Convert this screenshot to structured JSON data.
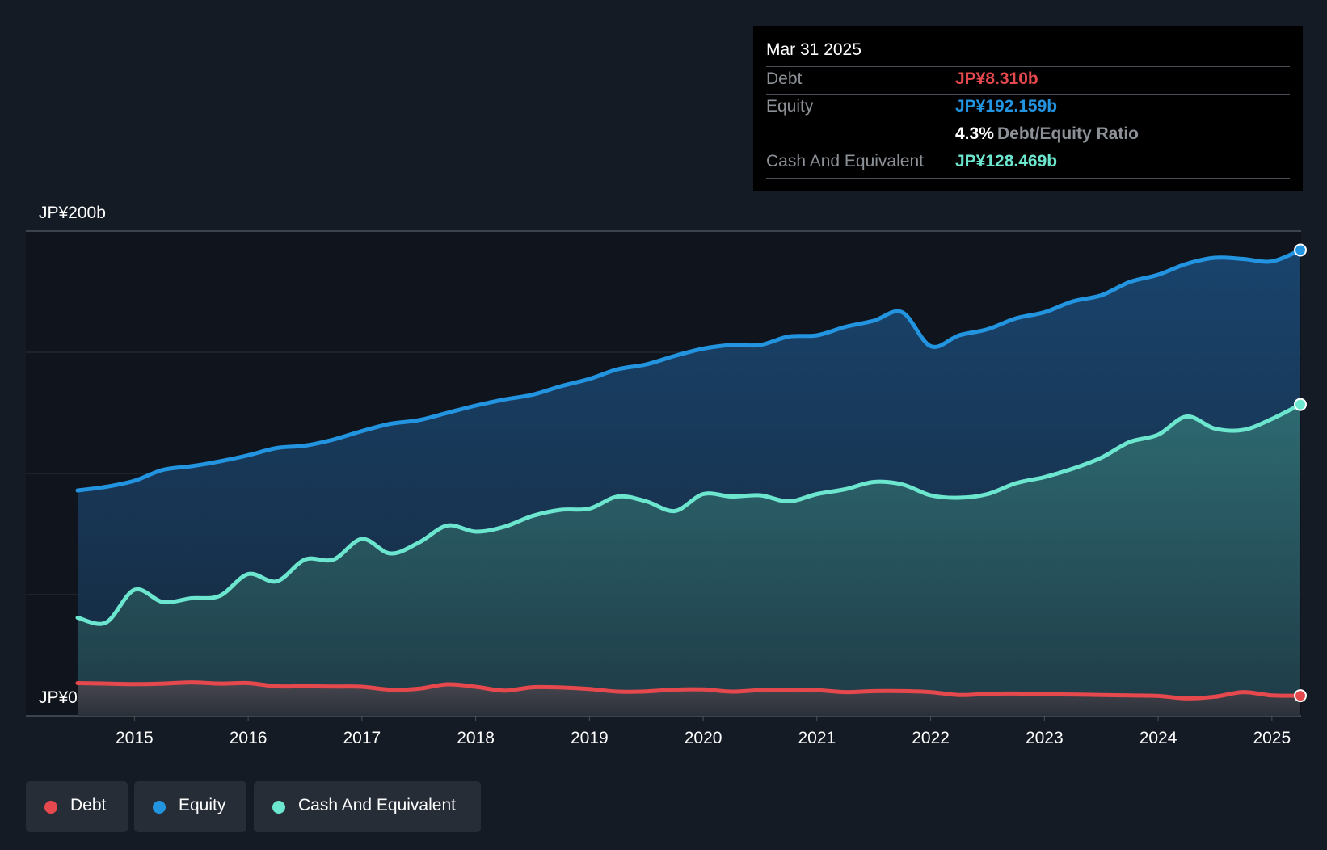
{
  "tooltip": {
    "date": "Mar 31 2025",
    "debt_label": "Debt",
    "debt_value": "JP¥8.310b",
    "equity_label": "Equity",
    "equity_value": "JP¥192.159b",
    "ratio_value": "4.3%",
    "ratio_label": "Debt/Equity Ratio",
    "cash_label": "Cash And Equivalent",
    "cash_value": "JP¥128.469b"
  },
  "legend": {
    "debt": "Debt",
    "equity": "Equity",
    "cash": "Cash And Equivalent"
  },
  "colors": {
    "debt": "#e5484d",
    "equity": "#2394e0",
    "cash": "#6ce6cf",
    "background": "#151b24"
  },
  "chart_data": {
    "type": "area",
    "title": "",
    "y_axis_labels": [
      "JP¥200b",
      "JP¥0"
    ],
    "ylim": [
      0,
      200
    ],
    "xlim": [
      2014.5,
      2025.25
    ],
    "x_ticks": [
      "2015",
      "2016",
      "2017",
      "2018",
      "2019",
      "2020",
      "2021",
      "2022",
      "2023",
      "2024",
      "2025"
    ],
    "unit": "JP¥b",
    "series": [
      {
        "name": "Equity",
        "x": [
          2014.5,
          2014.75,
          2015.0,
          2015.25,
          2015.5,
          2015.75,
          2016.0,
          2016.25,
          2016.5,
          2016.75,
          2017.0,
          2017.25,
          2017.5,
          2017.75,
          2018.0,
          2018.25,
          2018.5,
          2018.75,
          2019.0,
          2019.25,
          2019.5,
          2019.75,
          2020.0,
          2020.25,
          2020.5,
          2020.75,
          2021.0,
          2021.25,
          2021.5,
          2021.75,
          2022.0,
          2022.25,
          2022.5,
          2022.75,
          2023.0,
          2023.25,
          2023.5,
          2023.75,
          2024.0,
          2024.25,
          2024.5,
          2024.75,
          2025.0,
          2025.25
        ],
        "values": [
          93,
          94.5,
          97,
          101.5,
          103,
          105,
          107.5,
          110.5,
          111.5,
          114,
          117.5,
          120.5,
          122,
          125,
          128,
          130.5,
          132.5,
          136,
          139,
          143,
          145,
          148.5,
          151.5,
          153,
          153,
          156.5,
          157,
          160.5,
          163,
          166.5,
          152.5,
          157,
          159.5,
          164,
          166.5,
          171,
          173.5,
          179,
          182,
          186.5,
          189,
          188.5,
          187.5,
          192.159
        ]
      },
      {
        "name": "Cash And Equivalent",
        "x": [
          2014.5,
          2014.75,
          2015.0,
          2015.25,
          2015.5,
          2015.75,
          2016.0,
          2016.25,
          2016.5,
          2016.75,
          2017.0,
          2017.25,
          2017.5,
          2017.75,
          2018.0,
          2018.25,
          2018.5,
          2018.75,
          2019.0,
          2019.25,
          2019.5,
          2019.75,
          2020.0,
          2020.25,
          2020.5,
          2020.75,
          2021.0,
          2021.25,
          2021.5,
          2021.75,
          2022.0,
          2022.25,
          2022.5,
          2022.75,
          2023.0,
          2023.25,
          2023.5,
          2023.75,
          2024.0,
          2024.25,
          2024.5,
          2024.75,
          2025.0,
          2025.25
        ],
        "values": [
          40.5,
          38.5,
          52,
          47,
          48.5,
          49.5,
          58.5,
          55.5,
          64.5,
          64.5,
          73,
          67,
          71.5,
          78.5,
          76,
          78,
          82.5,
          85,
          85.5,
          90.5,
          88.5,
          84.5,
          91.5,
          90.5,
          91,
          88.5,
          91.5,
          93.5,
          96.5,
          95.5,
          91,
          90,
          91.5,
          96,
          98.5,
          102,
          106.5,
          113,
          116,
          123.5,
          118.5,
          118,
          122.5,
          128.469
        ]
      },
      {
        "name": "Debt",
        "x": [
          2014.5,
          2014.75,
          2015.0,
          2015.25,
          2015.5,
          2015.75,
          2016.0,
          2016.25,
          2016.5,
          2016.75,
          2017.0,
          2017.25,
          2017.5,
          2017.75,
          2018.0,
          2018.25,
          2018.5,
          2018.75,
          2019.0,
          2019.25,
          2019.5,
          2019.75,
          2020.0,
          2020.25,
          2020.5,
          2020.75,
          2021.0,
          2021.25,
          2021.5,
          2021.75,
          2022.0,
          2022.25,
          2022.5,
          2022.75,
          2023.0,
          2023.25,
          2023.5,
          2023.75,
          2024.0,
          2024.25,
          2024.5,
          2024.75,
          2025.0,
          2025.25
        ],
        "values": [
          13.5,
          13.3,
          13.1,
          13.3,
          13.8,
          13.3,
          13.5,
          12.2,
          12.2,
          12.1,
          12.0,
          10.8,
          11.2,
          13.0,
          12.0,
          10.4,
          11.8,
          11.7,
          11.1,
          10.0,
          10.1,
          10.8,
          10.9,
          10.0,
          10.6,
          10.5,
          10.6,
          9.8,
          10.2,
          10.2,
          9.8,
          8.6,
          9.1,
          9.2,
          8.9,
          8.8,
          8.6,
          8.4,
          8.2,
          7.2,
          7.9,
          9.8,
          8.4,
          8.31
        ]
      }
    ]
  }
}
